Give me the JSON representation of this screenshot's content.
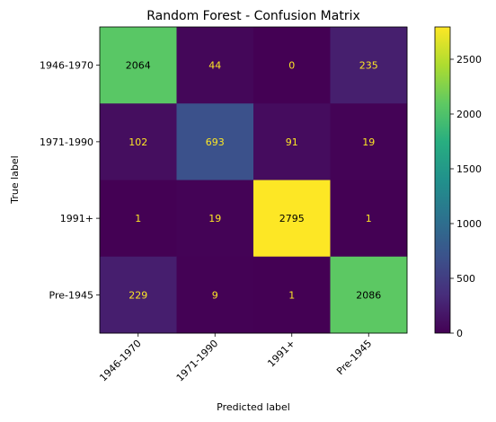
{
  "chart_data": {
    "type": "heatmap",
    "title": "Random Forest - Confusion Matrix",
    "xlabel": "Predicted label",
    "ylabel": "True label",
    "x_categories": [
      "1946-1970",
      "1971-1990",
      "1991+",
      "Pre-1945"
    ],
    "y_categories": [
      "1946-1970",
      "1971-1990",
      "1991+",
      "Pre-1945"
    ],
    "matrix": [
      [
        2064,
        44,
        0,
        235
      ],
      [
        102,
        693,
        91,
        19
      ],
      [
        1,
        19,
        2795,
        1
      ],
      [
        229,
        9,
        1,
        2086
      ]
    ],
    "colormap": "viridis",
    "colorbar": {
      "range": [
        0,
        2795
      ],
      "ticks": [
        0,
        500,
        1000,
        1500,
        2000,
        2500
      ]
    },
    "annotation_colors": {
      "on_dark": "#fde725",
      "on_light": "#000000"
    },
    "grid": false
  }
}
